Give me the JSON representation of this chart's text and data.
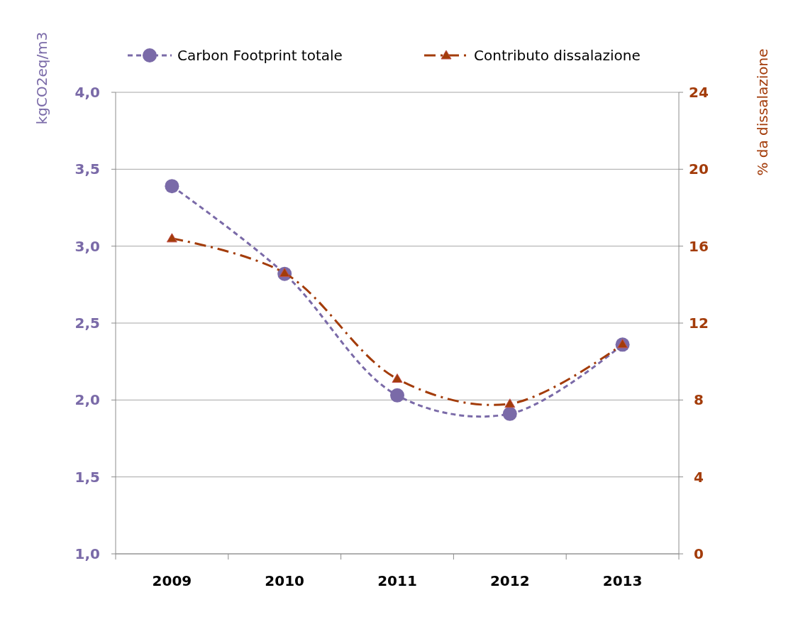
{
  "chart_data": {
    "type": "line",
    "categories": [
      "2009",
      "2010",
      "2011",
      "2012",
      "2013"
    ],
    "ylabel": "kgCO2eq/m3",
    "y2label": "% da dissalazione",
    "ylim": [
      1,
      4
    ],
    "yticks": [
      {
        "value": 1,
        "label": "1,0"
      },
      {
        "value": 1.5,
        "label": "1,5"
      },
      {
        "value": 2,
        "label": "2,0"
      },
      {
        "value": 2.5,
        "label": "2,5"
      },
      {
        "value": 3,
        "label": "3,0"
      },
      {
        "value": 3.5,
        "label": "3,5"
      },
      {
        "value": 4,
        "label": "4,0"
      }
    ],
    "y2lim": [
      0,
      24
    ],
    "y2ticks": [
      0,
      4,
      8,
      12,
      16,
      20,
      24
    ],
    "grid": "y",
    "legend": "top",
    "series": [
      {
        "name": "Carbon Footprint totale",
        "color": "#7a6aa8",
        "marker": "circle",
        "line_style": "dashed",
        "values": [
          3.39,
          2.82,
          2.03,
          1.91,
          2.36
        ]
      },
      {
        "name": "Contributo dissalazione",
        "color": "#a33c0a",
        "marker": "triangle",
        "line_style": "dashdot",
        "axis": "y2",
        "values": [
          16.4,
          14.6,
          9.1,
          7.8,
          10.9
        ]
      }
    ]
  }
}
